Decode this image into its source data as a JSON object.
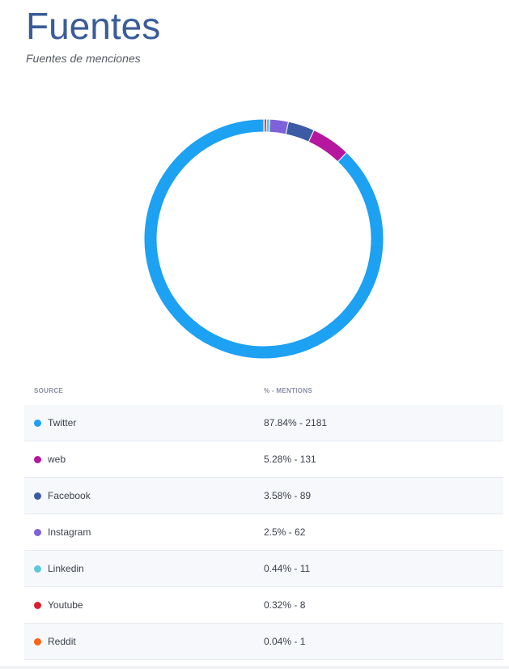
{
  "header": {
    "title": "Fuentes",
    "subtitle": "Fuentes de menciones"
  },
  "table": {
    "col_source": "SOURCE",
    "col_mentions": "% - MENTIONS",
    "rows": [
      {
        "label": "Twitter",
        "value": "87.84% - 2181",
        "color": "#1da1f2"
      },
      {
        "label": "web",
        "value": "5.28% - 131",
        "color": "#b5179e"
      },
      {
        "label": "Facebook",
        "value": "3.58% - 89",
        "color": "#3b5ba5"
      },
      {
        "label": "Instagram",
        "value": "2.5% - 62",
        "color": "#7e62d9"
      },
      {
        "label": "Linkedin",
        "value": "0.44% - 11",
        "color": "#5ec8d8"
      },
      {
        "label": "Youtube",
        "value": "0.32% - 8",
        "color": "#d9202f"
      },
      {
        "label": "Reddit",
        "value": "0.04% - 1",
        "color": "#ff6314"
      }
    ]
  },
  "chart_data": {
    "type": "pie",
    "donut": true,
    "categories": [
      "Twitter",
      "web",
      "Facebook",
      "Instagram",
      "Linkedin",
      "Youtube",
      "Reddit"
    ],
    "values": [
      87.84,
      5.28,
      3.58,
      2.5,
      0.44,
      0.32,
      0.04
    ],
    "counts": [
      2181,
      131,
      89,
      62,
      11,
      8,
      1
    ],
    "colors": [
      "#1da1f2",
      "#b5179e",
      "#3b5ba5",
      "#7e62d9",
      "#5ec8d8",
      "#d9202f",
      "#ff6314"
    ]
  }
}
